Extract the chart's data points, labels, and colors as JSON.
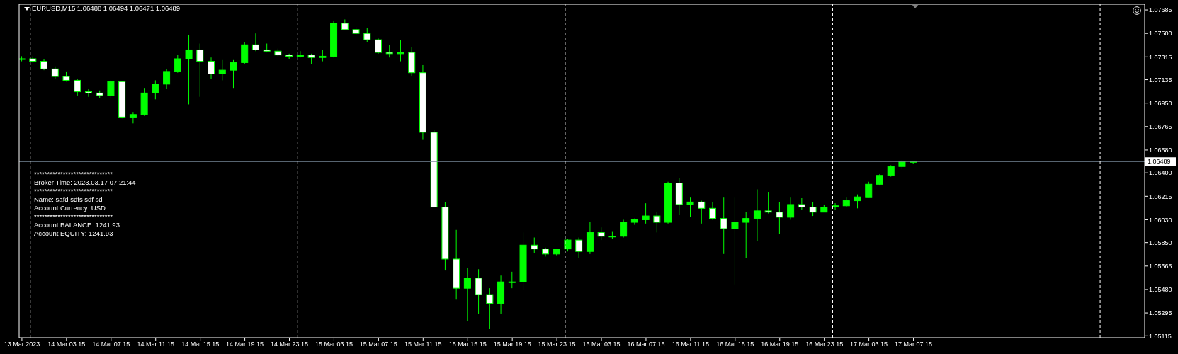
{
  "chart_data": {
    "type": "candlestick",
    "title": "EURUSD,M15 1.06488 1.06494 1.06471 1.06489",
    "annotations": [
      "******************************",
      "Broker Time: 2023.03.17 07:21:44",
      "******************************",
      "Name: safd sdfs sdf sd",
      "Account Currency: USD",
      "******************************",
      "Account BALANCE: 1241.93",
      "Account EQUITY: 1241.93"
    ],
    "x": [
      "2023-03-13T23:15",
      "2023-03-14T00:15",
      "2023-03-14T01:15",
      "2023-03-14T02:15",
      "2023-03-14T03:15",
      "2023-03-14T04:15",
      "2023-03-14T05:15",
      "2023-03-14T06:15",
      "2023-03-14T07:15",
      "2023-03-14T08:15",
      "2023-03-14T09:15",
      "2023-03-14T10:15",
      "2023-03-14T11:15",
      "2023-03-14T12:15",
      "2023-03-14T13:15",
      "2023-03-14T14:15",
      "2023-03-14T15:15",
      "2023-03-14T16:15",
      "2023-03-14T17:15",
      "2023-03-14T18:15",
      "2023-03-14T19:15",
      "2023-03-14T20:15",
      "2023-03-14T21:15",
      "2023-03-14T22:15",
      "2023-03-14T23:15",
      "2023-03-15T00:15",
      "2023-03-15T01:15",
      "2023-03-15T02:15",
      "2023-03-15T03:15",
      "2023-03-15T04:15",
      "2023-03-15T05:15",
      "2023-03-15T06:15",
      "2023-03-15T07:15",
      "2023-03-15T08:15",
      "2023-03-15T09:15",
      "2023-03-15T10:15",
      "2023-03-15T11:15",
      "2023-03-15T12:15",
      "2023-03-15T13:15",
      "2023-03-15T14:15",
      "2023-03-15T15:15",
      "2023-03-15T16:15",
      "2023-03-15T17:15",
      "2023-03-15T18:15",
      "2023-03-15T19:15",
      "2023-03-15T20:15",
      "2023-03-15T21:15",
      "2023-03-15T22:15",
      "2023-03-15T23:15",
      "2023-03-16T00:15",
      "2023-03-16T01:15",
      "2023-03-16T02:15",
      "2023-03-16T03:15",
      "2023-03-16T04:15",
      "2023-03-16T05:15",
      "2023-03-16T06:15",
      "2023-03-16T07:15",
      "2023-03-16T08:15",
      "2023-03-16T09:15",
      "2023-03-16T10:15",
      "2023-03-16T11:15",
      "2023-03-16T12:15",
      "2023-03-16T13:15",
      "2023-03-16T14:15",
      "2023-03-16T15:15",
      "2023-03-16T16:15",
      "2023-03-16T17:15",
      "2023-03-16T18:15",
      "2023-03-16T19:15",
      "2023-03-16T20:15",
      "2023-03-16T21:15",
      "2023-03-16T22:15",
      "2023-03-16T23:15",
      "2023-03-17T00:15",
      "2023-03-17T01:15",
      "2023-03-17T02:15",
      "2023-03-17T03:15",
      "2023-03-17T04:15",
      "2023-03-17T05:15",
      "2023-03-17T06:15",
      "2023-03-17T07:15"
    ],
    "ohlc": [
      [
        1.073,
        1.0732,
        1.0728,
        1.073
      ],
      [
        1.073,
        1.0732,
        1.0727,
        1.0728
      ],
      [
        1.0728,
        1.073,
        1.0721,
        1.0722
      ],
      [
        1.0722,
        1.0724,
        1.0714,
        1.0716
      ],
      [
        1.0716,
        1.072,
        1.0712,
        1.0713
      ],
      [
        1.0713,
        1.0714,
        1.0701,
        1.0704
      ],
      [
        1.0704,
        1.0706,
        1.07,
        1.0703
      ],
      [
        1.0703,
        1.0705,
        1.0699,
        1.0701
      ],
      [
        1.0701,
        1.0713,
        1.0699,
        1.0712
      ],
      [
        1.0712,
        1.0712,
        1.0683,
        1.0684
      ],
      [
        1.0684,
        1.0688,
        1.0679,
        1.0686
      ],
      [
        1.0686,
        1.0707,
        1.0685,
        1.0703
      ],
      [
        1.0703,
        1.0713,
        1.0698,
        1.071
      ],
      [
        1.071,
        1.0722,
        1.0706,
        1.072
      ],
      [
        1.072,
        1.0733,
        1.0719,
        1.073
      ],
      [
        1.073,
        1.0749,
        1.0694,
        1.0737
      ],
      [
        1.0737,
        1.0742,
        1.07,
        1.0728
      ],
      [
        1.0728,
        1.0731,
        1.0714,
        1.0718
      ],
      [
        1.0718,
        1.0729,
        1.0713,
        1.0721
      ],
      [
        1.0721,
        1.0729,
        1.0707,
        1.0727
      ],
      [
        1.0727,
        1.0743,
        1.0726,
        1.0741
      ],
      [
        1.0741,
        1.075,
        1.0736,
        1.0737
      ],
      [
        1.0737,
        1.0742,
        1.0735,
        1.0736
      ],
      [
        1.0736,
        1.0738,
        1.0732,
        1.0733
      ],
      [
        1.0733,
        1.0734,
        1.073,
        1.0732
      ],
      [
        1.0732,
        1.0736,
        1.0731,
        1.0733
      ],
      [
        1.0733,
        1.0734,
        1.0726,
        1.0731
      ],
      [
        1.0731,
        1.0737,
        1.0728,
        1.0732
      ],
      [
        1.0732,
        1.076,
        1.0731,
        1.0758
      ],
      [
        1.0758,
        1.0761,
        1.0753,
        1.0753
      ],
      [
        1.0753,
        1.0755,
        1.0749,
        1.075
      ],
      [
        1.075,
        1.0754,
        1.0743,
        1.0745
      ],
      [
        1.0745,
        1.0746,
        1.0734,
        1.0735
      ],
      [
        1.0735,
        1.0741,
        1.0731,
        1.0734
      ],
      [
        1.0734,
        1.0745,
        1.0728,
        1.0735
      ],
      [
        1.0735,
        1.0739,
        1.0716,
        1.0719
      ],
      [
        1.0719,
        1.0725,
        1.0666,
        1.0672
      ],
      [
        1.0672,
        1.0674,
        1.0613,
        1.0613
      ],
      [
        1.0613,
        1.0617,
        1.0563,
        1.0572
      ],
      [
        1.0572,
        1.0595,
        1.054,
        1.0549
      ],
      [
        1.0549,
        1.0565,
        1.0523,
        1.0557
      ],
      [
        1.0557,
        1.0564,
        1.0529,
        1.0544
      ],
      [
        1.0544,
        1.0549,
        1.0517,
        1.0537
      ],
      [
        1.0537,
        1.0559,
        1.0529,
        1.0554
      ],
      [
        1.0554,
        1.0562,
        1.0549,
        1.0554
      ],
      [
        1.0554,
        1.0593,
        1.0548,
        1.0583
      ],
      [
        1.0583,
        1.0589,
        1.0577,
        1.058
      ],
      [
        1.058,
        1.0581,
        1.0574,
        1.0576
      ],
      [
        1.0576,
        1.058,
        1.0575,
        1.058
      ],
      [
        1.058,
        1.0588,
        1.0578,
        1.0587
      ],
      [
        1.0587,
        1.0589,
        1.0573,
        1.0578
      ],
      [
        1.0578,
        1.0601,
        1.0576,
        1.0593
      ],
      [
        1.0593,
        1.0597,
        1.0587,
        1.059
      ],
      [
        1.059,
        1.0594,
        1.0588,
        1.059
      ],
      [
        1.059,
        1.0603,
        1.0589,
        1.0601
      ],
      [
        1.0601,
        1.0604,
        1.0599,
        1.0603
      ],
      [
        1.0603,
        1.0616,
        1.06,
        1.0606
      ],
      [
        1.0606,
        1.0609,
        1.0593,
        1.0601
      ],
      [
        1.0601,
        1.0633,
        1.06,
        1.0632
      ],
      [
        1.0632,
        1.0636,
        1.0607,
        1.0615
      ],
      [
        1.0615,
        1.0621,
        1.0605,
        1.0617
      ],
      [
        1.0617,
        1.0618,
        1.06,
        1.0612
      ],
      [
        1.0612,
        1.0617,
        1.0603,
        1.0604
      ],
      [
        1.0604,
        1.0621,
        1.0576,
        1.0596
      ],
      [
        1.0596,
        1.0621,
        1.0552,
        1.0601
      ],
      [
        1.0601,
        1.0609,
        1.0573,
        1.0604
      ],
      [
        1.0604,
        1.0627,
        1.0586,
        1.061
      ],
      [
        1.061,
        1.0625,
        1.0608,
        1.0609
      ],
      [
        1.0609,
        1.0617,
        1.0592,
        1.0605
      ],
      [
        1.0605,
        1.0621,
        1.0603,
        1.0615
      ],
      [
        1.0615,
        1.062,
        1.0611,
        1.0613
      ],
      [
        1.0613,
        1.0617,
        1.0606,
        1.0609
      ],
      [
        1.0609,
        1.0615,
        1.0609,
        1.0613
      ],
      [
        1.0613,
        1.0616,
        1.0611,
        1.0614
      ],
      [
        1.0614,
        1.0621,
        1.0613,
        1.0618
      ],
      [
        1.0618,
        1.0623,
        1.0612,
        1.0621
      ],
      [
        1.0621,
        1.0633,
        1.0621,
        1.0631
      ],
      [
        1.0631,
        1.0639,
        1.063,
        1.0638
      ],
      [
        1.0638,
        1.0646,
        1.0637,
        1.0645
      ],
      [
        1.0645,
        1.065,
        1.0643,
        1.0649
      ],
      [
        1.06488,
        1.06494,
        1.06471,
        1.06489
      ]
    ],
    "color": "#00ff00",
    "colors": [
      "#00ff00",
      "#ffffff",
      "#ffffff",
      "#ffffff",
      "#ffffff",
      "#ffffff",
      "#ffffff",
      "#ffffff",
      "#00ff00",
      "#ffffff",
      "#00ff00",
      "#00ff00",
      "#00ff00",
      "#00ff00",
      "#00ff00",
      "#00ff00",
      "#ffffff",
      "#ffffff",
      "#00ff00",
      "#00ff00",
      "#00ff00",
      "#ffffff",
      "#ffffff",
      "#ffffff",
      "#ffffff",
      "#00ff00",
      "#ffffff",
      "#00ff00",
      "#00ff00",
      "#ffffff",
      "#ffffff",
      "#ffffff",
      "#ffffff",
      "#ffffff",
      "#00ff00",
      "#ffffff",
      "#ffffff",
      "#ffffff",
      "#ffffff",
      "#ffffff",
      "#00ff00",
      "#ffffff",
      "#ffffff",
      "#00ff00",
      "#00ff00",
      "#00ff00",
      "#ffffff",
      "#ffffff",
      "#00ff00",
      "#00ff00",
      "#ffffff",
      "#00ff00",
      "#ffffff",
      "#00ff00",
      "#00ff00",
      "#00ff00",
      "#00ff00",
      "#ffffff",
      "#00ff00",
      "#ffffff",
      "#00ff00",
      "#ffffff",
      "#ffffff",
      "#ffffff",
      "#00ff00",
      "#00ff00",
      "#00ff00",
      "#ffffff",
      "#ffffff",
      "#00ff00",
      "#ffffff",
      "#ffffff",
      "#00ff00",
      "#00ff00",
      "#00ff00",
      "#00ff00",
      "#00ff00",
      "#00ff00",
      "#00ff00",
      "#00ff00",
      "#00ff00"
    ],
    "xlim": [
      "2023-03-13T23:00",
      "2023-03-18T04:00"
    ],
    "xticks": [
      {
        "value": "2023-03-13T23:15",
        "label": "13 Mar 2023"
      },
      {
        "value": "2023-03-14T03:15",
        "label": "14 Mar 03:15"
      },
      {
        "value": "2023-03-14T07:15",
        "label": "14 Mar 07:15"
      },
      {
        "value": "2023-03-14T11:15",
        "label": "14 Mar 11:15"
      },
      {
        "value": "2023-03-14T15:15",
        "label": "14 Mar 15:15"
      },
      {
        "value": "2023-03-14T19:15",
        "label": "14 Mar 19:15"
      },
      {
        "value": "2023-03-14T23:15",
        "label": "14 Mar 23:15"
      },
      {
        "value": "2023-03-15T03:15",
        "label": "15 Mar 03:15"
      },
      {
        "value": "2023-03-15T07:15",
        "label": "15 Mar 07:15"
      },
      {
        "value": "2023-03-15T11:15",
        "label": "15 Mar 11:15"
      },
      {
        "value": "2023-03-15T15:15",
        "label": "15 Mar 15:15"
      },
      {
        "value": "2023-03-15T19:15",
        "label": "15 Mar 19:15"
      },
      {
        "value": "2023-03-15T23:15",
        "label": "15 Mar 23:15"
      },
      {
        "value": "2023-03-16T03:15",
        "label": "16 Mar 03:15"
      },
      {
        "value": "2023-03-16T07:15",
        "label": "16 Mar 07:15"
      },
      {
        "value": "2023-03-16T11:15",
        "label": "16 Mar 11:15"
      },
      {
        "value": "2023-03-16T15:15",
        "label": "16 Mar 15:15"
      },
      {
        "value": "2023-03-16T19:15",
        "label": "16 Mar 19:15"
      },
      {
        "value": "2023-03-16T23:15",
        "label": "16 Mar 23:15"
      },
      {
        "value": "2023-03-17T03:15",
        "label": "17 Mar 03:15"
      },
      {
        "value": "2023-03-17T07:15",
        "label": "17 Mar 07:15"
      }
    ],
    "ylim": [
      1.051,
      1.0773
    ],
    "yticks": [
      {
        "value": 1.07685,
        "label": "1.07685"
      },
      {
        "value": 1.075,
        "label": "1.07500"
      },
      {
        "value": 1.07315,
        "label": "1.07315"
      },
      {
        "value": 1.07135,
        "label": "1.07135"
      },
      {
        "value": 1.0695,
        "label": "1.06950"
      },
      {
        "value": 1.06765,
        "label": "1.06765"
      },
      {
        "value": 1.0658,
        "label": "1.06580"
      },
      {
        "value": 1.064,
        "label": "1.06400"
      },
      {
        "value": 1.06215,
        "label": "1.06215"
      },
      {
        "value": 1.0603,
        "label": "1.06030"
      },
      {
        "value": 1.0585,
        "label": "1.05850"
      },
      {
        "value": 1.05665,
        "label": "1.05665"
      },
      {
        "value": 1.0548,
        "label": "1.05480"
      },
      {
        "value": 1.05295,
        "label": "1.05295"
      },
      {
        "value": 1.05115,
        "label": "1.05115"
      }
    ],
    "ref_lines": [
      {
        "axis": "y",
        "value": 1.06489,
        "label": "1.06489",
        "color": "#778899"
      },
      {
        "axis": "x",
        "value": "2023-03-14T00:00",
        "color": "#ffffff",
        "line_style": "dashed"
      },
      {
        "axis": "x",
        "value": "2023-03-15T00:00",
        "color": "#ffffff",
        "line_style": "dashed"
      },
      {
        "axis": "x",
        "value": "2023-03-16T00:00",
        "color": "#ffffff",
        "line_style": "dashed"
      },
      {
        "axis": "x",
        "value": "2023-03-17T00:00",
        "color": "#ffffff",
        "line_style": "dashed"
      },
      {
        "axis": "x",
        "value": "2023-03-18T00:00",
        "color": "#ffffff",
        "line_style": "dashed"
      }
    ]
  }
}
